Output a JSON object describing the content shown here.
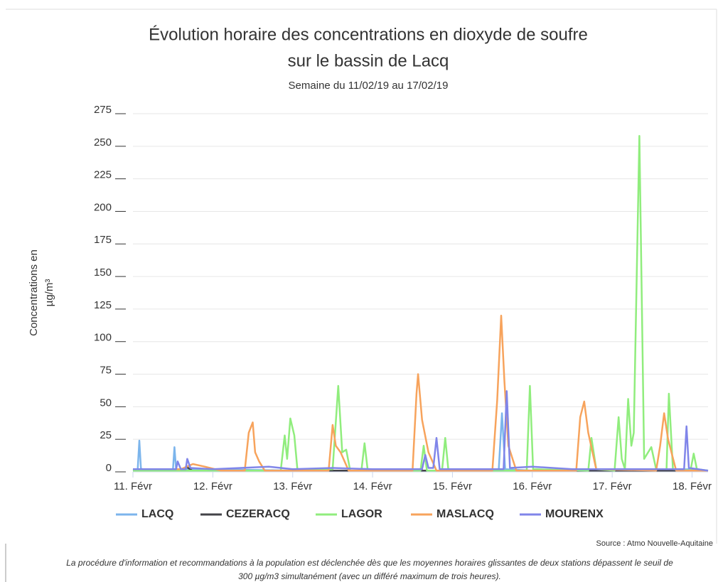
{
  "chart_data": {
    "type": "line",
    "title": [
      "Évolution horaire des concentrations en dioxyde de soufre",
      "sur le bassin de Lacq"
    ],
    "subtitle": "Semaine du 11/02/19 au 17/02/19",
    "ylabel": [
      "Concentrations en",
      "µg/m³"
    ],
    "source": "Source : Atmo Nouvelle-Aquitaine",
    "footnote": [
      "La procédure d'information et recommandations à la population est déclenchée dès que les moyennes horaires glissantes de deux stations dépassent le seuil de",
      "300 µg/m3 simultanément (avec un différé maximum de trois heures)."
    ],
    "xlim": [
      0,
      7.2
    ],
    "xticks": [
      {
        "value": 0,
        "label": "11. Févr"
      },
      {
        "value": 1,
        "label": "12. Févr"
      },
      {
        "value": 2,
        "label": "13. Févr"
      },
      {
        "value": 3,
        "label": "14. Févr"
      },
      {
        "value": 4,
        "label": "15. Févr"
      },
      {
        "value": 5,
        "label": "16. Févr"
      },
      {
        "value": 6,
        "label": "17. Févr"
      },
      {
        "value": 7,
        "label": "18. Févr"
      }
    ],
    "ylim": [
      0,
      275
    ],
    "yticks": [
      0,
      25,
      50,
      75,
      100,
      125,
      150,
      175,
      200,
      225,
      250,
      275
    ],
    "legend": "bottom",
    "series": [
      {
        "name": "LACQ",
        "color": "#7cb5ec",
        "x": [
          0,
          0.06,
          0.08,
          0.1,
          0.12,
          0.5,
          0.52,
          0.54,
          1,
          2,
          3,
          4,
          4.58,
          4.62,
          4.66,
          5,
          6,
          7,
          7.2
        ],
        "values": [
          1,
          2,
          24,
          3,
          1,
          1,
          19,
          2,
          2,
          1,
          1,
          1,
          2,
          45,
          2,
          1,
          1,
          2,
          1
        ]
      },
      {
        "name": "CEZERACQ",
        "color": "#434348",
        "x": [
          0,
          0.6,
          0.67,
          0.74,
          1,
          2,
          3,
          4,
          5,
          6,
          7,
          7.2
        ],
        "values": [
          1,
          1,
          4,
          1,
          1,
          1,
          1,
          1,
          1,
          1,
          1,
          1
        ]
      },
      {
        "name": "LAGOR",
        "color": "#90ed7d",
        "x": [
          0,
          1.85,
          1.9,
          1.93,
          1.97,
          2.02,
          2.06,
          2.5,
          2.57,
          2.62,
          2.67,
          2.72,
          2.86,
          2.9,
          2.94,
          3.6,
          3.64,
          3.68,
          3.87,
          3.91,
          3.95,
          4.93,
          4.97,
          5.01,
          5.7,
          5.74,
          5.8,
          6.03,
          6.08,
          6.12,
          6.16,
          6.2,
          6.24,
          6.27,
          6.34,
          6.4,
          6.45,
          6.49,
          6.55,
          6.68,
          6.71,
          6.76,
          6.98,
          7.02,
          7.06,
          7.2
        ],
        "values": [
          1,
          1,
          28,
          10,
          41,
          28,
          1,
          2,
          66,
          15,
          17,
          1,
          1,
          22,
          1,
          1,
          20,
          1,
          1,
          26,
          1,
          1,
          66,
          2,
          1,
          26,
          2,
          1,
          42,
          10,
          2,
          56,
          20,
          30,
          258,
          10,
          15,
          19,
          2,
          2,
          60,
          2,
          1,
          14,
          2,
          1
        ]
      },
      {
        "name": "MASLACQ",
        "color": "#f7a35c",
        "x": [
          0,
          0.6,
          0.75,
          0.9,
          1.1,
          1.4,
          1.45,
          1.5,
          1.53,
          1.58,
          1.65,
          2,
          2.45,
          2.5,
          2.54,
          2.6,
          2.7,
          3.5,
          3.55,
          3.57,
          3.62,
          3.7,
          3.8,
          4.5,
          4.56,
          4.61,
          4.65,
          4.7,
          4.8,
          5.55,
          5.6,
          5.65,
          5.7,
          5.8,
          6.55,
          6.6,
          6.65,
          6.7,
          6.8,
          7.2
        ],
        "values": [
          2,
          2,
          6,
          4,
          1,
          1,
          30,
          38,
          15,
          8,
          1,
          1,
          1,
          36,
          20,
          15,
          1,
          1,
          60,
          75,
          40,
          15,
          1,
          1,
          55,
          120,
          70,
          20,
          1,
          1,
          42,
          54,
          30,
          2,
          1,
          20,
          45,
          25,
          1,
          1
        ]
      },
      {
        "name": "MOURENX",
        "color": "#8085e9",
        "x": [
          0,
          0.54,
          0.56,
          0.6,
          0.66,
          0.68,
          0.72,
          1,
          1.7,
          2,
          2.5,
          3,
          3.62,
          3.66,
          3.7,
          3.76,
          3.8,
          3.84,
          4.5,
          4.64,
          4.68,
          4.72,
          5,
          5.5,
          6,
          6.9,
          6.93,
          6.96,
          7.2
        ],
        "values": [
          2,
          2,
          8,
          2,
          2,
          10,
          3,
          2,
          4,
          2,
          3,
          2,
          2,
          13,
          3,
          3,
          26,
          2,
          2,
          2,
          62,
          3,
          4,
          2,
          2,
          2,
          35,
          3,
          1
        ]
      }
    ]
  }
}
